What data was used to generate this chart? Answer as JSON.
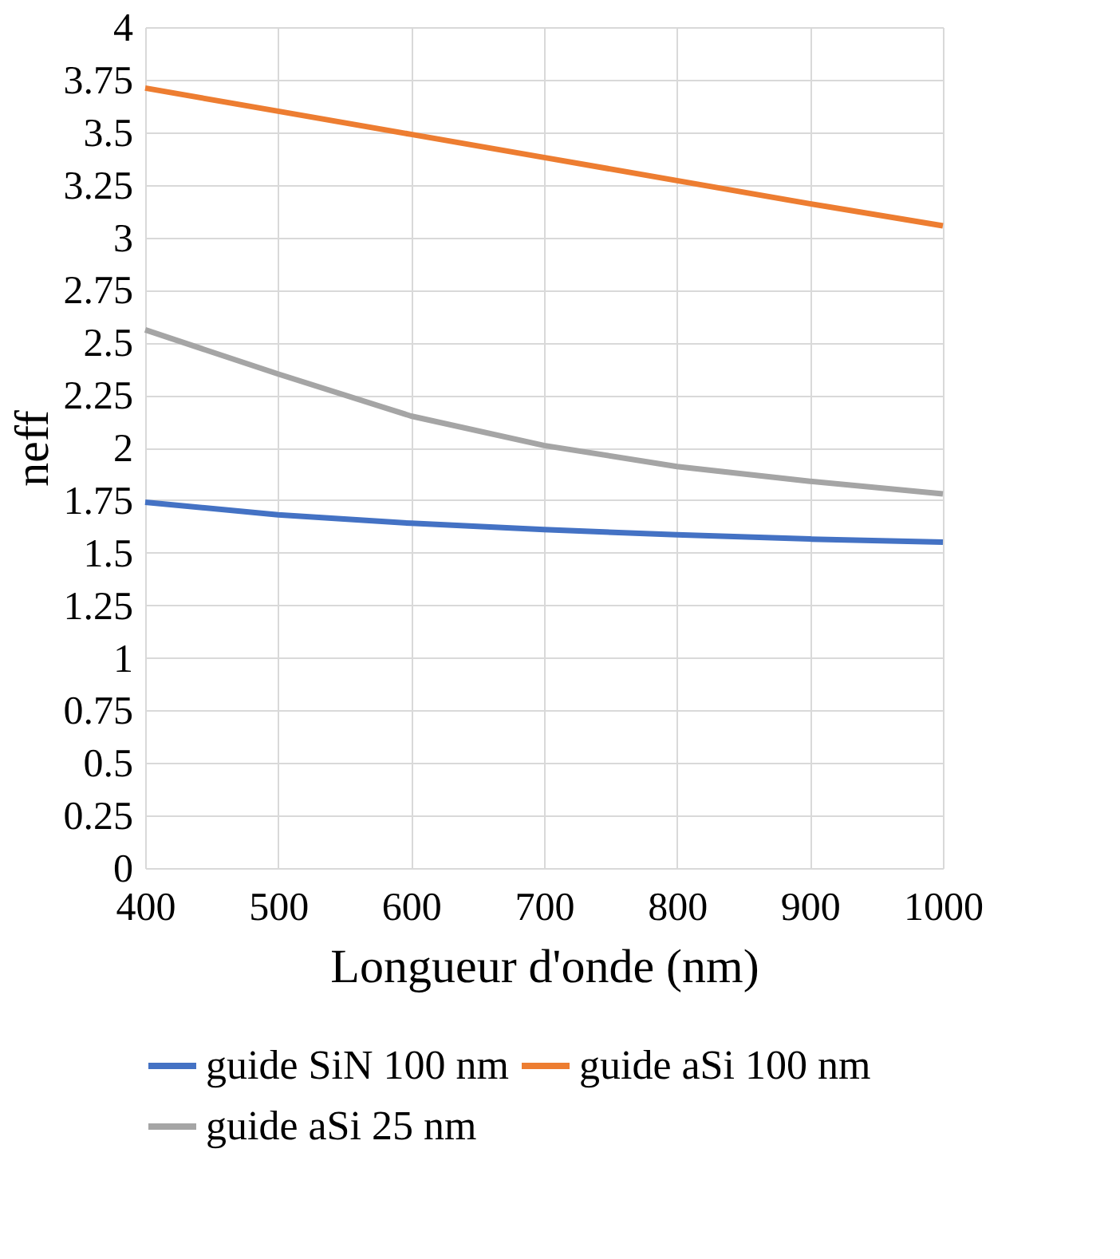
{
  "chart_data": {
    "type": "line",
    "xlabel": "Longueur d'onde (nm)",
    "ylabel": "neff",
    "x": [
      400,
      500,
      600,
      700,
      800,
      900,
      1000
    ],
    "series": [
      {
        "name": "guide SiN 100 nm",
        "color": "#4472c4",
        "values": [
          1.74,
          1.68,
          1.64,
          1.61,
          1.585,
          1.565,
          1.55
        ]
      },
      {
        "name": "guide aSi 100 nm",
        "color": "#ed7d31",
        "values": [
          3.71,
          3.6,
          3.49,
          3.38,
          3.27,
          3.16,
          3.055
        ]
      },
      {
        "name": "guide aSi 25 nm",
        "color": "#a5a5a5",
        "values": [
          2.56,
          2.35,
          2.15,
          2.01,
          1.91,
          1.84,
          1.78
        ]
      }
    ],
    "xlim": [
      400,
      1000
    ],
    "xticks": [
      400,
      500,
      600,
      700,
      800,
      900,
      1000
    ],
    "ylim": [
      0,
      4
    ],
    "yticks": [
      0,
      0.25,
      0.5,
      0.75,
      1,
      1.25,
      1.5,
      1.75,
      2,
      2.25,
      2.5,
      2.75,
      3,
      3.25,
      3.5,
      3.75,
      4
    ],
    "grid": true,
    "legend": "bottom",
    "marker": "none",
    "line_style": "solid"
  }
}
